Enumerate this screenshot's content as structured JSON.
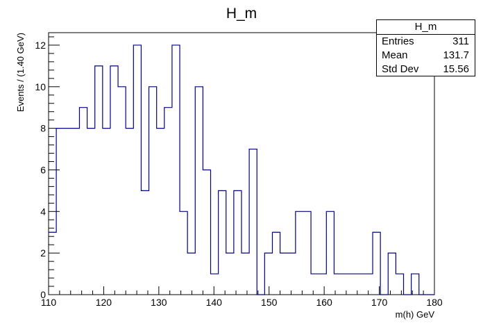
{
  "chart_data": {
    "type": "histogram",
    "title": "H_m",
    "xlabel": "m(h) GeV",
    "ylabel": "Events / (1.40 GeV)",
    "xlim": [
      110,
      180
    ],
    "ylim": [
      0,
      12.6
    ],
    "bin_width": 1.4,
    "x_ticks": [
      110,
      120,
      130,
      140,
      150,
      160,
      170,
      180
    ],
    "y_ticks": [
      0,
      2,
      4,
      6,
      8,
      10,
      12
    ],
    "values": [
      3,
      8,
      8,
      8,
      9,
      8,
      11,
      8,
      11,
      10,
      8,
      12,
      5,
      10,
      8,
      9,
      12,
      4,
      2,
      10,
      6,
      1,
      5,
      2,
      5,
      2,
      7,
      0,
      2,
      3,
      2,
      2,
      4,
      4,
      1,
      1,
      4,
      1,
      1,
      1,
      1,
      1,
      3,
      0,
      2,
      1,
      0,
      1,
      0,
      0
    ],
    "line_color": "#000080",
    "grid": false
  },
  "stats": {
    "title": "H_m",
    "rows": [
      {
        "label": "Entries",
        "value": "311"
      },
      {
        "label": "Mean",
        "value": "131.7"
      },
      {
        "label": "Std Dev",
        "value": "15.56"
      }
    ]
  }
}
